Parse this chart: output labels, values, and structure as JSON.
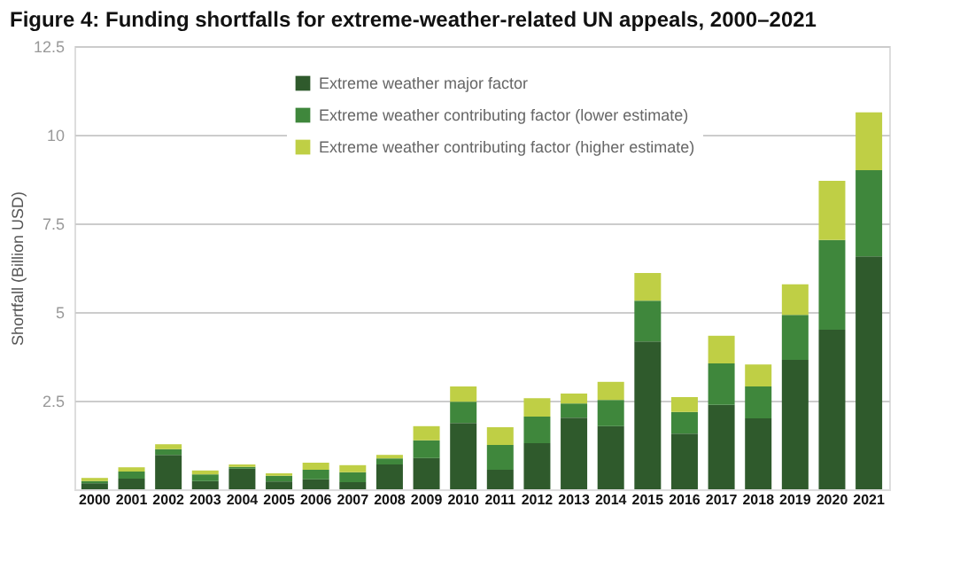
{
  "chart_data": {
    "type": "bar",
    "stacked": true,
    "title": "Figure 4: Funding shortfalls for extreme-weather-related UN appeals, 2000–2021",
    "ylabel": "Shortfall (Billion USD)",
    "categories": [
      "2000",
      "2001",
      "2002",
      "2003",
      "2004",
      "2005",
      "2006",
      "2007",
      "2008",
      "2009",
      "2010",
      "2011",
      "2012",
      "2013",
      "2014",
      "2015",
      "2016",
      "2017",
      "2018",
      "2019",
      "2020",
      "2021"
    ],
    "series": [
      {
        "name": "Extreme weather major factor",
        "color": "#2f5a2c",
        "values": [
          0.17,
          0.3,
          0.97,
          0.23,
          0.58,
          0.22,
          0.28,
          0.2,
          0.7,
          0.88,
          1.87,
          0.55,
          1.3,
          2.02,
          1.78,
          4.17,
          1.57,
          2.38,
          2.0,
          3.65,
          4.5,
          6.57
        ]
      },
      {
        "name": "Extreme weather contributing factor (lower estimate)",
        "color": "#3f873c",
        "values": [
          0.06,
          0.2,
          0.16,
          0.19,
          0.05,
          0.16,
          0.27,
          0.28,
          0.17,
          0.5,
          0.6,
          0.7,
          0.75,
          0.4,
          0.74,
          1.15,
          0.61,
          1.17,
          0.9,
          1.27,
          2.53,
          2.43
        ]
      },
      {
        "name": "Extreme weather contributing factor (higher estimate)",
        "color": "#bfcf45",
        "values": [
          0.09,
          0.12,
          0.14,
          0.11,
          0.07,
          0.07,
          0.2,
          0.2,
          0.1,
          0.4,
          0.43,
          0.5,
          0.52,
          0.28,
          0.51,
          0.78,
          0.42,
          0.78,
          0.62,
          0.86,
          1.67,
          1.63
        ]
      }
    ],
    "ylim": [
      0,
      12.5
    ],
    "yticks": [
      2.5,
      5,
      7.5,
      10,
      12.5
    ],
    "grid": "y",
    "legend": "top left"
  }
}
